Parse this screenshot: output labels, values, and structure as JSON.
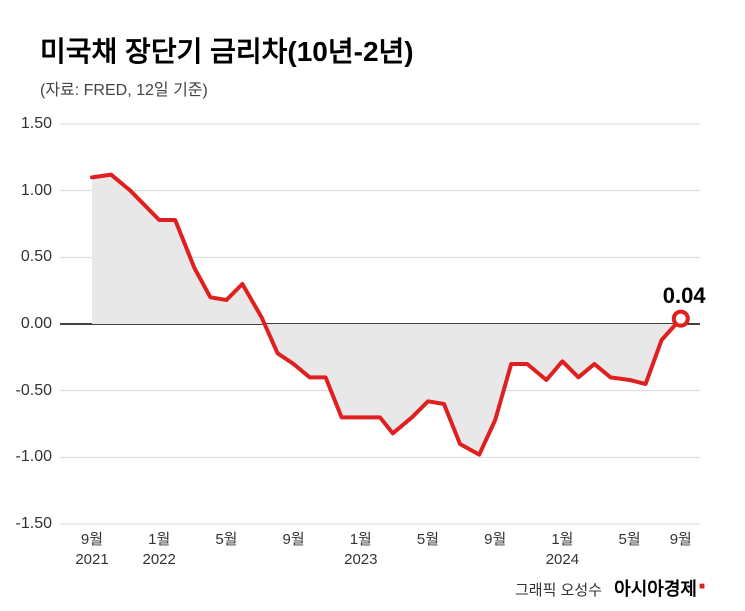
{
  "title": "미국채 장단기 금리차(10년-2년)",
  "subtitle": "(자료: FRED, 12일 기준)",
  "credit_label": "그래픽 오성수",
  "credit_brand": "아시아경제",
  "chart": {
    "type": "line",
    "ylim": [
      -1.5,
      1.5
    ],
    "ytick_step": 0.5,
    "yticks": [
      "1.50",
      "1.00",
      "0.50",
      "0.00",
      "-0.50",
      "-1.00",
      "-1.50"
    ],
    "ytick_values": [
      1.5,
      1.0,
      0.5,
      0.0,
      -0.5,
      -1.0,
      -1.5
    ],
    "xticks": [
      {
        "label_top": "9월",
        "label_bottom": "2021",
        "pos": 0.05
      },
      {
        "label_top": "1월",
        "label_bottom": "2022",
        "pos": 0.155
      },
      {
        "label_top": "5월",
        "label_bottom": "",
        "pos": 0.26
      },
      {
        "label_top": "9월",
        "label_bottom": "",
        "pos": 0.365
      },
      {
        "label_top": "1월",
        "label_bottom": "2023",
        "pos": 0.47
      },
      {
        "label_top": "5월",
        "label_bottom": "",
        "pos": 0.575
      },
      {
        "label_top": "9월",
        "label_bottom": "",
        "pos": 0.68
      },
      {
        "label_top": "1월",
        "label_bottom": "2024",
        "pos": 0.785
      },
      {
        "label_top": "5월",
        "label_bottom": "",
        "pos": 0.89
      },
      {
        "label_top": "9월",
        "label_bottom": "",
        "pos": 0.97
      }
    ],
    "series": {
      "points": [
        {
          "x": 0.05,
          "y": 1.1
        },
        {
          "x": 0.08,
          "y": 1.12
        },
        {
          "x": 0.11,
          "y": 1.0
        },
        {
          "x": 0.155,
          "y": 0.78
        },
        {
          "x": 0.18,
          "y": 0.78
        },
        {
          "x": 0.21,
          "y": 0.42
        },
        {
          "x": 0.235,
          "y": 0.2
        },
        {
          "x": 0.26,
          "y": 0.18
        },
        {
          "x": 0.285,
          "y": 0.3
        },
        {
          "x": 0.315,
          "y": 0.05
        },
        {
          "x": 0.34,
          "y": -0.22
        },
        {
          "x": 0.365,
          "y": -0.3
        },
        {
          "x": 0.39,
          "y": -0.4
        },
        {
          "x": 0.415,
          "y": -0.4
        },
        {
          "x": 0.44,
          "y": -0.7
        },
        {
          "x": 0.47,
          "y": -0.7
        },
        {
          "x": 0.5,
          "y": -0.7
        },
        {
          "x": 0.52,
          "y": -0.82
        },
        {
          "x": 0.55,
          "y": -0.7
        },
        {
          "x": 0.575,
          "y": -0.58
        },
        {
          "x": 0.6,
          "y": -0.6
        },
        {
          "x": 0.625,
          "y": -0.9
        },
        {
          "x": 0.655,
          "y": -0.98
        },
        {
          "x": 0.68,
          "y": -0.72
        },
        {
          "x": 0.705,
          "y": -0.3
        },
        {
          "x": 0.73,
          "y": -0.3
        },
        {
          "x": 0.76,
          "y": -0.42
        },
        {
          "x": 0.785,
          "y": -0.28
        },
        {
          "x": 0.81,
          "y": -0.4
        },
        {
          "x": 0.835,
          "y": -0.3
        },
        {
          "x": 0.86,
          "y": -0.4
        },
        {
          "x": 0.89,
          "y": -0.42
        },
        {
          "x": 0.915,
          "y": -0.45
        },
        {
          "x": 0.94,
          "y": -0.12
        },
        {
          "x": 0.97,
          "y": 0.04
        }
      ]
    },
    "last_point_label": "0.04",
    "line_color": "#e02020",
    "line_width": 4,
    "fill_color": "#e8e8e8",
    "zero_line_color": "#000000",
    "grid_color": "#dadada",
    "grid_width": 1,
    "background_color": "#ffffff",
    "marker_radius": 7,
    "marker_stroke": "#e02020",
    "marker_fill": "#ffffff",
    "title_fontsize": 28,
    "subtitle_fontsize": 16,
    "tick_fontsize": 16,
    "annotation_fontsize": 22
  }
}
